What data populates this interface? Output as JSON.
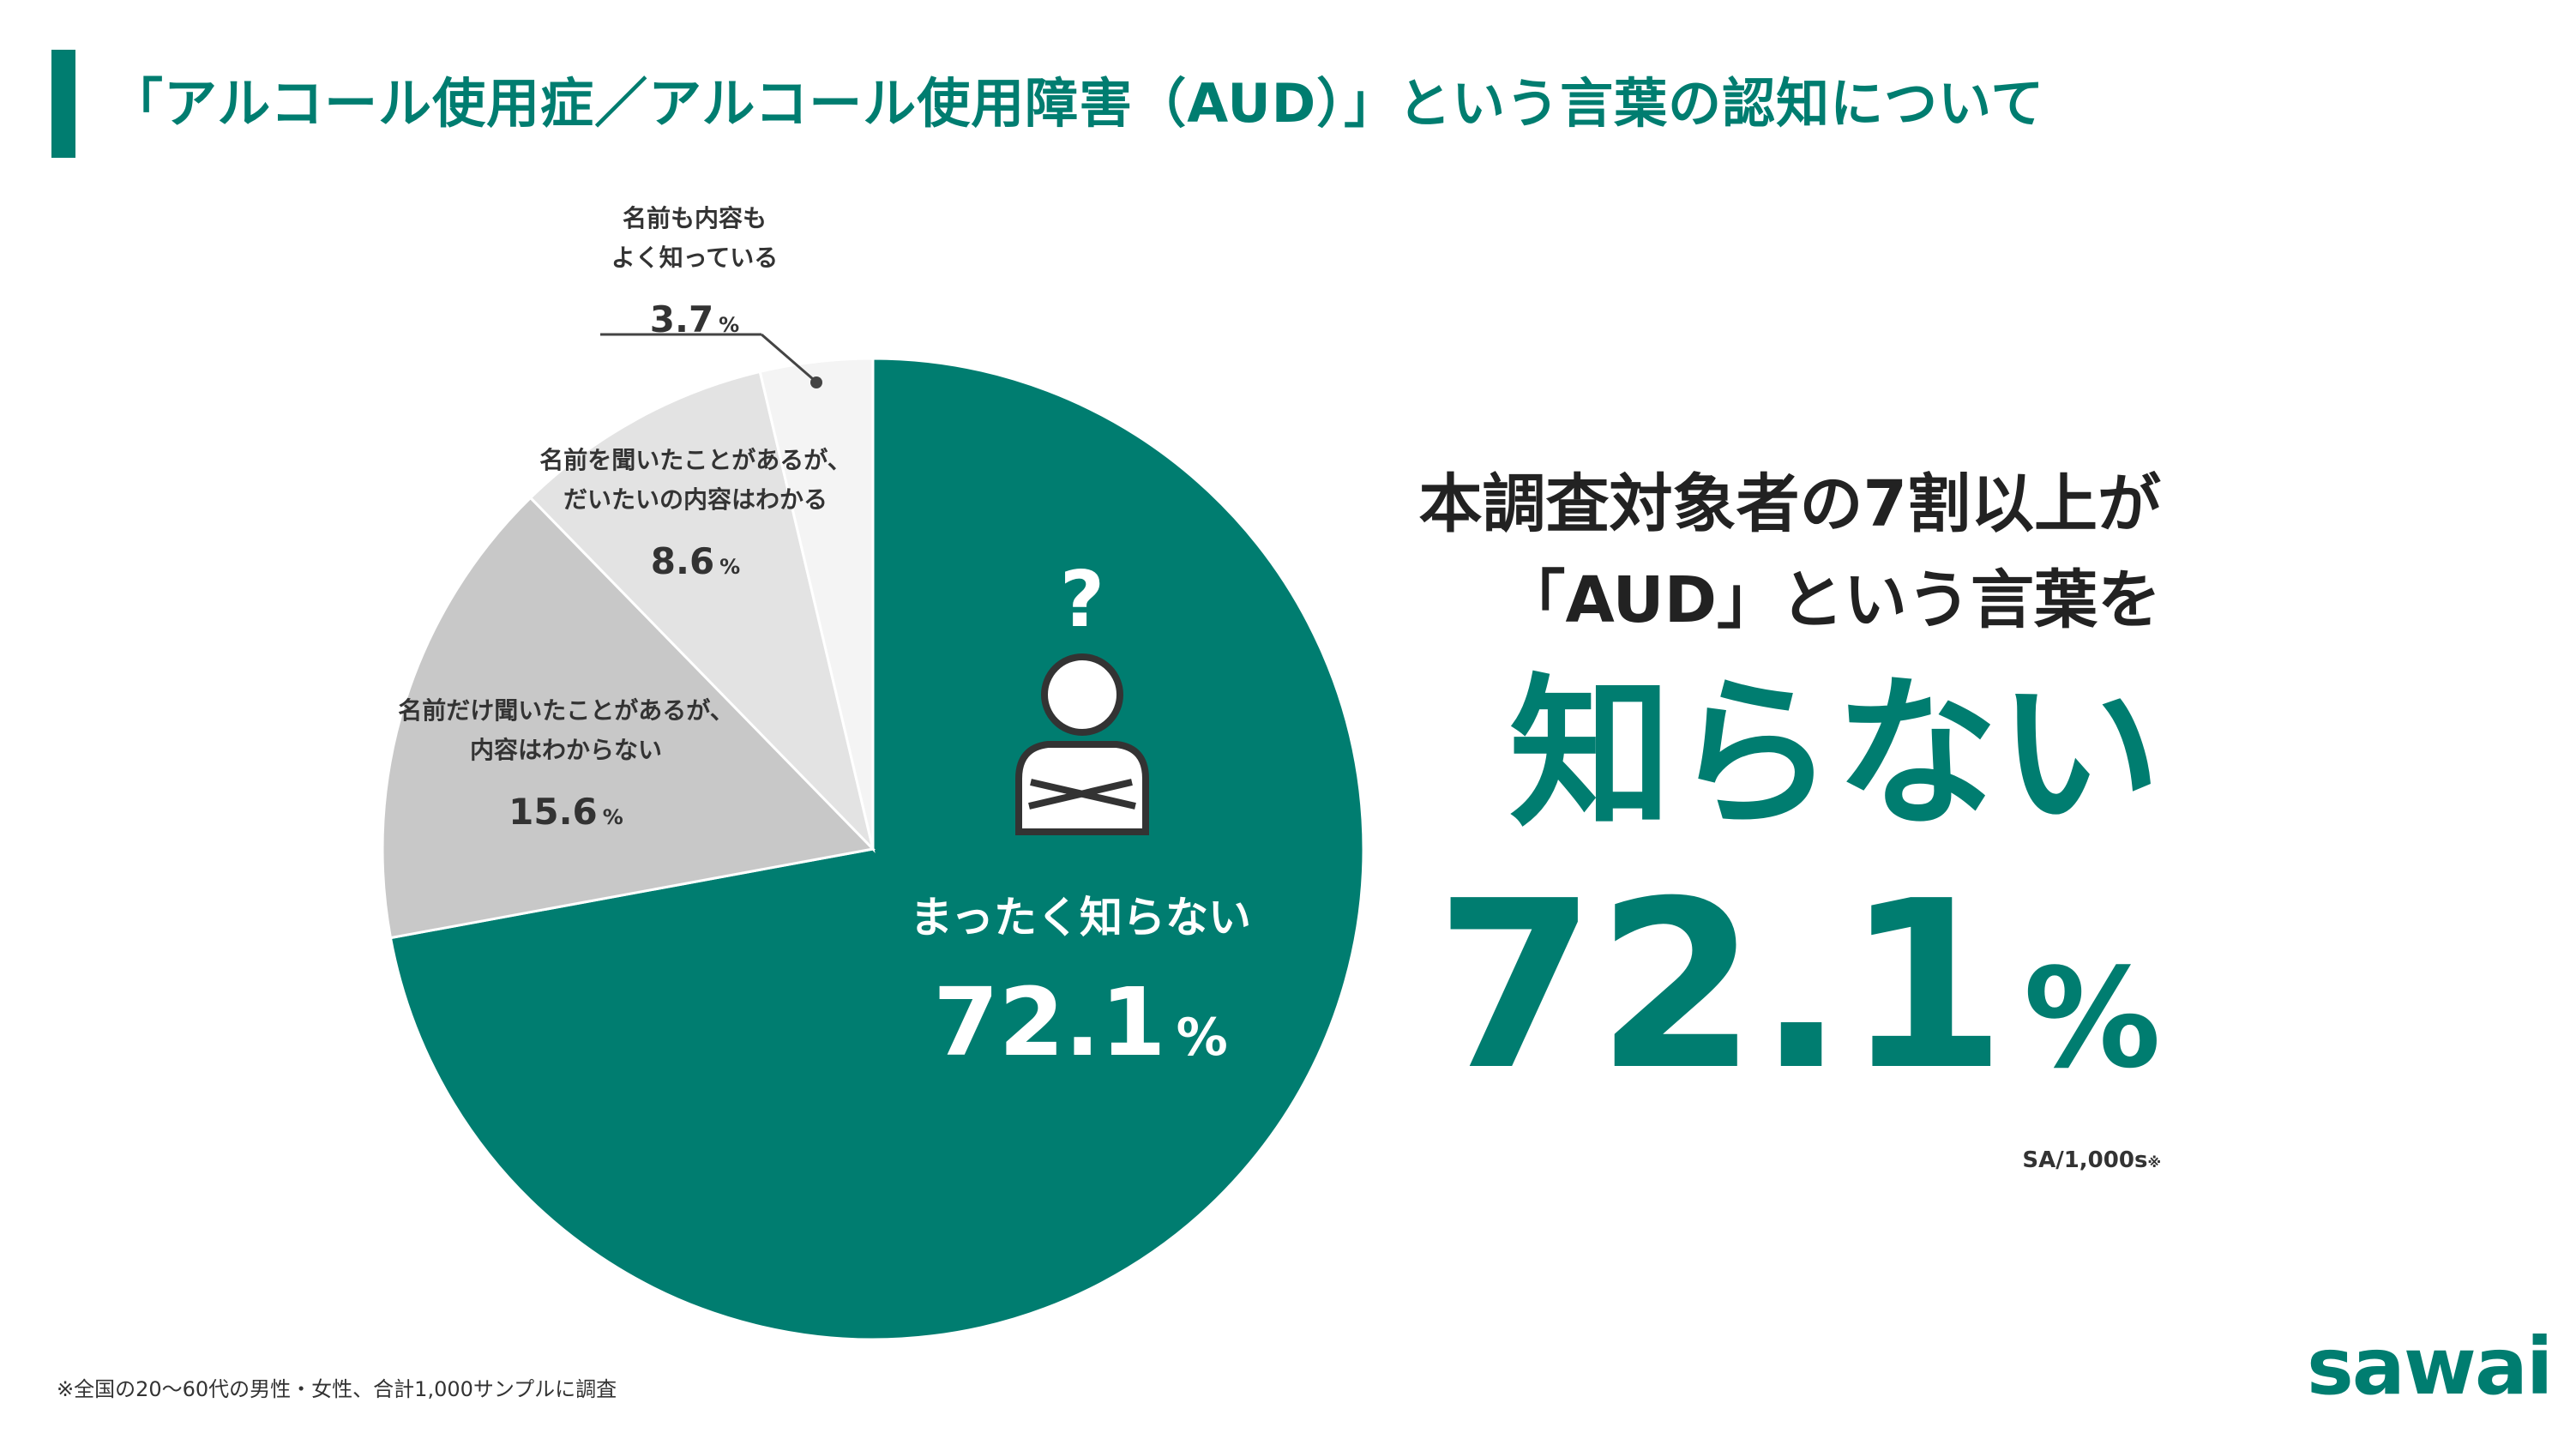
{
  "title": "「アルコール使用症／アルコール使用障害（AUD）」という言葉の認知について",
  "chart_data": {
    "type": "pie",
    "unit": "%",
    "slices": [
      {
        "label": "まったく知らない",
        "value": 72.1,
        "color": "#007d70"
      },
      {
        "label": "名前だけ聞いたことがあるが、内容はわからない",
        "label_lines": [
          "名前だけ聞いたことがあるが、",
          "内容はわからない"
        ],
        "value": 15.6,
        "color": "#c8c8c8"
      },
      {
        "label": "名前を聞いたことがあるが、だいたいの内容はわかる",
        "label_lines": [
          "名前を聞いたことがあるが、",
          "だいたいの内容はわかる"
        ],
        "value": 8.6,
        "color": "#e3e3e3"
      },
      {
        "label": "名前も内容もよく知っている",
        "label_lines": [
          "名前も内容も",
          "よく知っている"
        ],
        "value": 3.7,
        "color": "#f4f4f4"
      }
    ]
  },
  "display": {
    "main_label": "まったく知らない",
    "main_value": "72.1",
    "s2_line1": "名前だけ聞いたことがあるが、",
    "s2_line2": "内容はわからない",
    "s2_value": "15.6",
    "s3_line1": "名前を聞いたことがあるが、",
    "s3_line2": "だいたいの内容はわかる",
    "s3_value": "8.6",
    "s4_line1": "名前も内容も",
    "s4_line2": "よく知っている",
    "s4_value": "3.7",
    "percent": "%",
    "question_mark": "?"
  },
  "headline": {
    "line1": "本調査対象者の7割以上が",
    "line2": "「AUD」という言葉を",
    "line3": "知らない",
    "value": "72.1",
    "percent": "%"
  },
  "sample_note": "SA/1,000s",
  "sample_mark": "※",
  "footnote": "※全国の20～60代の男性・女性、合計1,000サンプルに調査",
  "logo_text": "sawai",
  "colors": {
    "brand": "#007d70",
    "gray1": "#c8c8c8",
    "gray2": "#e3e3e3",
    "gray3": "#f4f4f4"
  }
}
